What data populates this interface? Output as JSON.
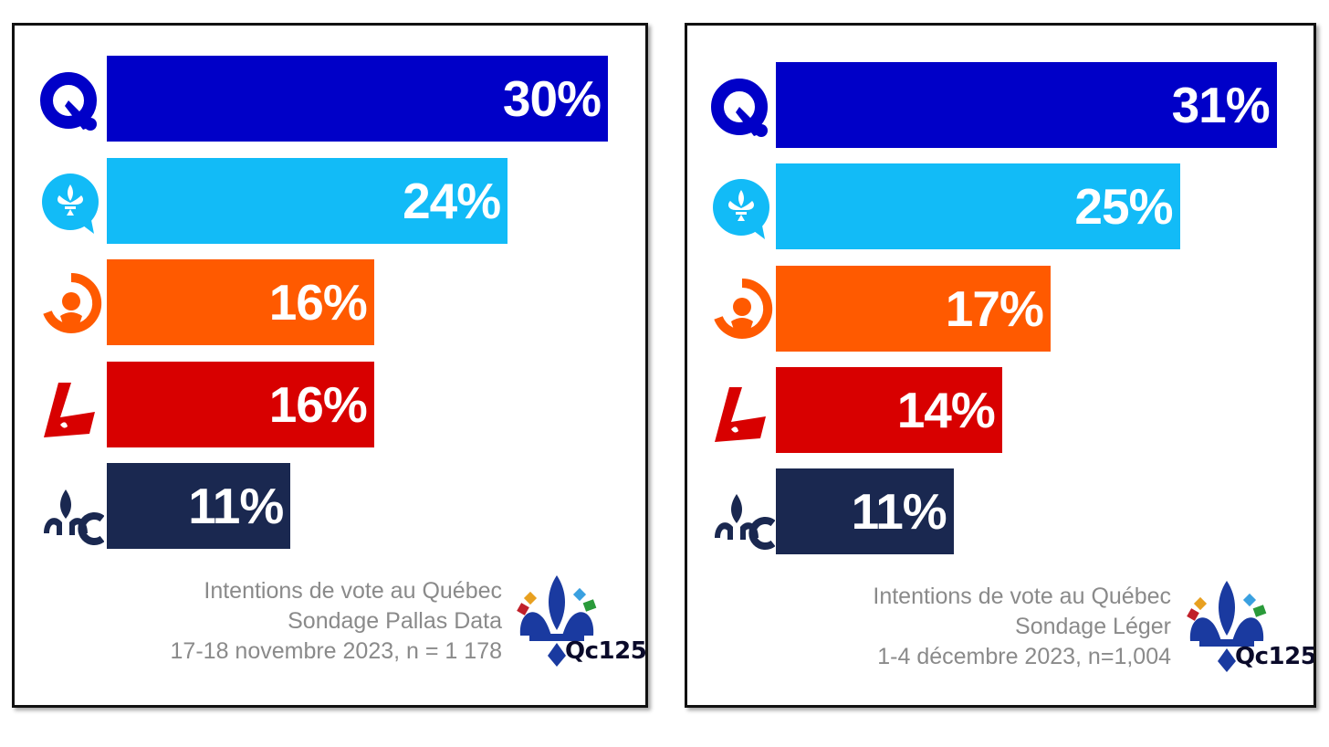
{
  "colors": {
    "caq": "#0000c8",
    "pq": "#12bbf7",
    "qs": "#ff5a00",
    "plq": "#d80000",
    "pcq": "#1a2850",
    "caption": "#8a8a8a"
  },
  "chart_data": [
    {
      "type": "bar",
      "orientation": "horizontal",
      "categories": [
        "caq-logo",
        "pq-logo",
        "qs-logo",
        "plq-logo",
        "pcq-logo"
      ],
      "values": [
        30,
        24,
        16,
        16,
        11
      ],
      "value_labels": [
        "30%",
        "24%",
        "16%",
        "16%",
        "11%"
      ],
      "bar_colors": [
        "#0000c8",
        "#12bbf7",
        "#ff5a00",
        "#d80000",
        "#1a2850"
      ],
      "caption_lines": [
        "Intentions de vote au Québec",
        "Sondage Pallas Data",
        "17-18 novembre 2023, n = 1 178"
      ],
      "brand": "Qc125",
      "xlim": [
        0,
        30
      ]
    },
    {
      "type": "bar",
      "orientation": "horizontal",
      "categories": [
        "caq-logo",
        "pq-logo",
        "qs-logo",
        "plq-logo",
        "pcq-logo"
      ],
      "values": [
        31,
        25,
        17,
        14,
        11
      ],
      "value_labels": [
        "31%",
        "25%",
        "17%",
        "14%",
        "11%"
      ],
      "bar_colors": [
        "#0000c8",
        "#12bbf7",
        "#ff5a00",
        "#d80000",
        "#1a2850"
      ],
      "caption_lines": [
        "Intentions de vote au Québec",
        "Sondage Léger",
        "1-4 décembre 2023, n=1,004"
      ],
      "brand": "Qc125",
      "xlim": [
        0,
        31
      ]
    }
  ]
}
